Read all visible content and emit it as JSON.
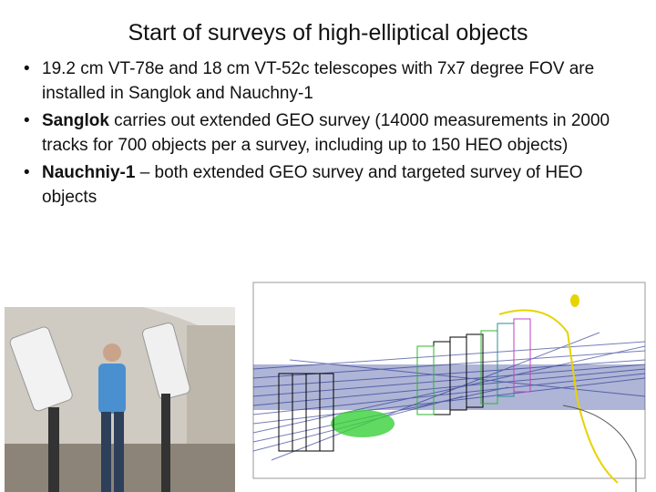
{
  "slide": {
    "title": "Start of surveys of high-elliptical objects",
    "bullets": [
      {
        "text": "19.2 cm VT-78e and 18 cm VT-52c telescopes with 7x7 degree FOV are installed in Sanglok and Nauchny-1"
      },
      {
        "bold": "Sanglok",
        "text": " carries out extended GEO survey (14000 measurements in 2000 tracks for 700 objects per a survey, including up to 150 HEO objects)"
      },
      {
        "bold": "Nauchniy-1",
        "text": " – both extended GEO survey and targeted survey of HEO objects"
      }
    ]
  }
}
